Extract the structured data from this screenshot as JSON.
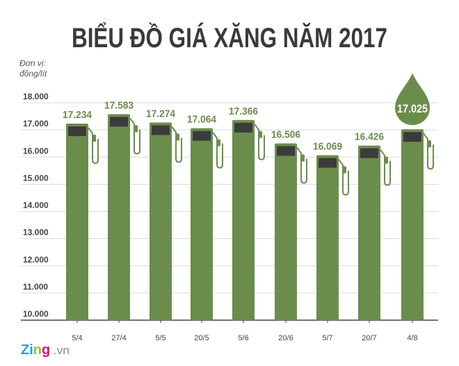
{
  "chart_data": {
    "type": "bar",
    "title": "BIỂU ĐỒ GIÁ XĂNG NĂM 2017",
    "unit_label": [
      "Đơn vị:",
      "đồng/lít"
    ],
    "categories": [
      "5/4",
      "27/4",
      "5/5",
      "20/5",
      "5/6",
      "20/6",
      "5/7",
      "20/7",
      "4/8"
    ],
    "values": [
      17234,
      17583,
      17274,
      17064,
      17366,
      16506,
      16069,
      16426,
      17025
    ],
    "value_labels": [
      "17.234",
      "17.583",
      "17.274",
      "17.064",
      "17.366",
      "16.506",
      "16.069",
      "16.426",
      "17.025"
    ],
    "highlighted_index": 8,
    "ylim": [
      10000,
      18000
    ],
    "yticks": [
      10000,
      11000,
      12000,
      13000,
      14000,
      15000,
      16000,
      17000,
      18000
    ],
    "ytick_labels": [
      "10.000",
      "11.000",
      "12.000",
      "13.000",
      "14.000",
      "15.000",
      "16.000",
      "17.000",
      "18.000"
    ],
    "grid": true,
    "bar_style": "fuel-pump",
    "colors": {
      "bar": "#6b8d4c",
      "screen": "#3b3b3b",
      "title": "#3a3a3a",
      "grid": "#d9d9d9",
      "label": "#6b8d4c"
    }
  },
  "branding": {
    "logo": "Zing",
    "suffix": ".vn"
  }
}
